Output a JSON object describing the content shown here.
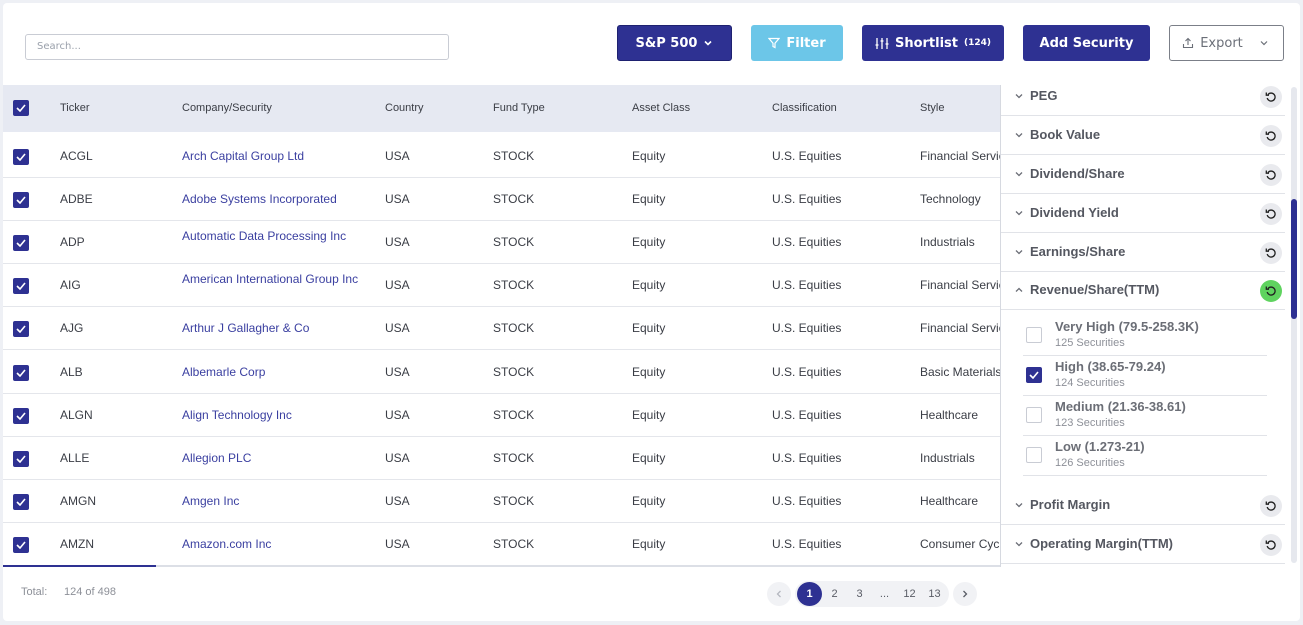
{
  "toolbar": {
    "search_placeholder": "Search...",
    "index_label": "S&P 500",
    "filter_label": "Filter",
    "shortlist_label": "Shortlist",
    "shortlist_count": "(124)",
    "add_label": "Add Security",
    "export_label": "Export"
  },
  "table": {
    "columns": [
      "Ticker",
      "Company/Security",
      "Country",
      "Fund Type",
      "Asset Class",
      "Classification",
      "Style"
    ],
    "rows": [
      {
        "ticker": "ACGL",
        "company": "Arch Capital Group Ltd",
        "country": "USA",
        "fund": "STOCK",
        "asset": "Equity",
        "cls": "U.S. Equities",
        "style": "Financial Services"
      },
      {
        "ticker": "ADBE",
        "company": "Adobe Systems Incorporated",
        "country": "USA",
        "fund": "STOCK",
        "asset": "Equity",
        "cls": "U.S. Equities",
        "style": "Technology"
      },
      {
        "ticker": "ADP",
        "company": "Automatic Data Processing Inc",
        "country": "USA",
        "fund": "STOCK",
        "asset": "Equity",
        "cls": "U.S. Equities",
        "style": "Industrials"
      },
      {
        "ticker": "AIG",
        "company": "American International Group Inc",
        "country": "USA",
        "fund": "STOCK",
        "asset": "Equity",
        "cls": "U.S. Equities",
        "style": "Financial Services"
      },
      {
        "ticker": "AJG",
        "company": "Arthur J Gallagher & Co",
        "country": "USA",
        "fund": "STOCK",
        "asset": "Equity",
        "cls": "U.S. Equities",
        "style": "Financial Services"
      },
      {
        "ticker": "ALB",
        "company": "Albemarle Corp",
        "country": "USA",
        "fund": "STOCK",
        "asset": "Equity",
        "cls": "U.S. Equities",
        "style": "Basic Materials"
      },
      {
        "ticker": "ALGN",
        "company": "Align Technology Inc",
        "country": "USA",
        "fund": "STOCK",
        "asset": "Equity",
        "cls": "U.S. Equities",
        "style": "Healthcare"
      },
      {
        "ticker": "ALLE",
        "company": "Allegion PLC",
        "country": "USA",
        "fund": "STOCK",
        "asset": "Equity",
        "cls": "U.S. Equities",
        "style": "Industrials"
      },
      {
        "ticker": "AMGN",
        "company": "Amgen Inc",
        "country": "USA",
        "fund": "STOCK",
        "asset": "Equity",
        "cls": "U.S. Equities",
        "style": "Healthcare"
      },
      {
        "ticker": "AMZN",
        "company": "Amazon.com Inc",
        "country": "USA",
        "fund": "STOCK",
        "asset": "Equity",
        "cls": "U.S. Equities",
        "style": "Consumer Cyclical"
      }
    ]
  },
  "panel": {
    "sections_top": [
      "PEG",
      "Book Value",
      "Dividend/Share",
      "Dividend Yield",
      "Earnings/Share"
    ],
    "expanded": {
      "label": "Revenue/Share(TTM)",
      "options": [
        {
          "title": "Very High (79.5-258.3K)",
          "sub": "125 Securities",
          "checked": false
        },
        {
          "title": "High (38.65-79.24)",
          "sub": "124 Securities",
          "checked": true
        },
        {
          "title": "Medium (21.36-38.61)",
          "sub": "123 Securities",
          "checked": false
        },
        {
          "title": "Low (1.273-21)",
          "sub": "126 Securities",
          "checked": false
        }
      ]
    },
    "sections_bottom": [
      "Profit Margin",
      "Operating Margin(TTM)"
    ]
  },
  "footer": {
    "total_label": "Total:",
    "total_value": "124 of 498",
    "pages": [
      "1",
      "2",
      "3",
      "...",
      "12",
      "13"
    ],
    "current_page": "1"
  },
  "colors": {
    "primary": "#2e3192",
    "filter": "#6cc6e8",
    "reset_active": "#5fd35f",
    "link": "#3a3fa0"
  },
  "icons": [
    "chevron-down-icon",
    "filter-icon",
    "sliders-icon",
    "upload-icon",
    "check-icon",
    "reset-icon",
    "chevron-up-icon",
    "chevron-left-icon",
    "chevron-right-icon"
  ]
}
